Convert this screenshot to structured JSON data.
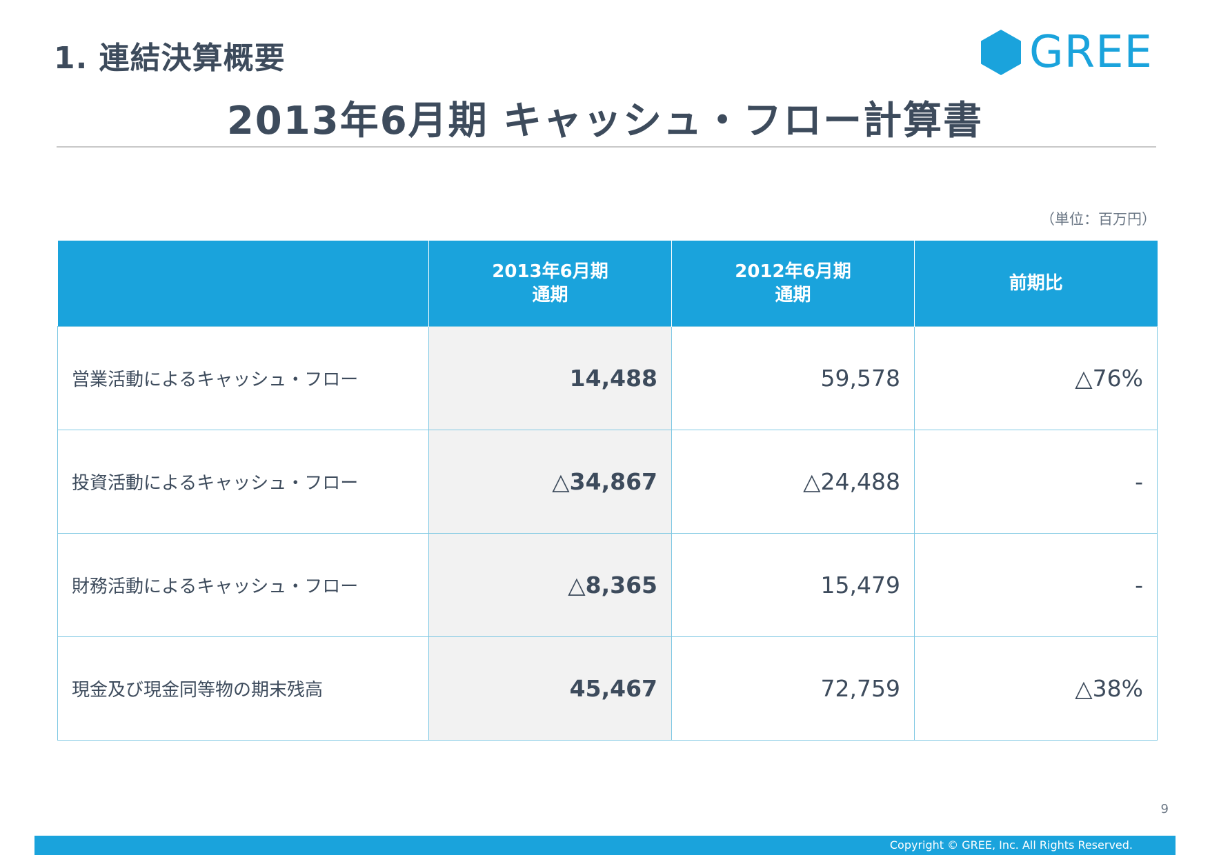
{
  "header": {
    "section_title": "1. 連結決算概要",
    "logo_text": "GREE",
    "main_title": "2013年6月期 キャッシュ・フロー計算書",
    "unit_note": "（単位：百万円）"
  },
  "table": {
    "columns": [
      {
        "line1": "",
        "line2": ""
      },
      {
        "line1": "2013年6月期",
        "line2": "通期"
      },
      {
        "line1": "2012年6月期",
        "line2": "通期"
      },
      {
        "line1": "前期比",
        "line2": ""
      }
    ],
    "rows": [
      {
        "label": "営業活動によるキャッシュ・フロー",
        "fy2013": "14,488",
        "fy2012": "59,578",
        "yoy": "△76%"
      },
      {
        "label": "投資活動によるキャッシュ・フロー",
        "fy2013": "△34,867",
        "fy2012": "△24,488",
        "yoy": "-"
      },
      {
        "label": "財務活動によるキャッシュ・フロー",
        "fy2013": "△8,365",
        "fy2012": "15,479",
        "yoy": "-"
      },
      {
        "label": "現金及び現金同等物の期末残高",
        "fy2013": "45,467",
        "fy2012": "72,759",
        "yoy": "△38%"
      }
    ]
  },
  "footer": {
    "page_number": "9",
    "copyright": "Copyright © GREE, Inc. All Rights Reserved."
  },
  "colors": {
    "brand_blue": "#1aa3dc",
    "text_dark": "#3d4b5c",
    "highlight_col": "#f2f2f2"
  }
}
